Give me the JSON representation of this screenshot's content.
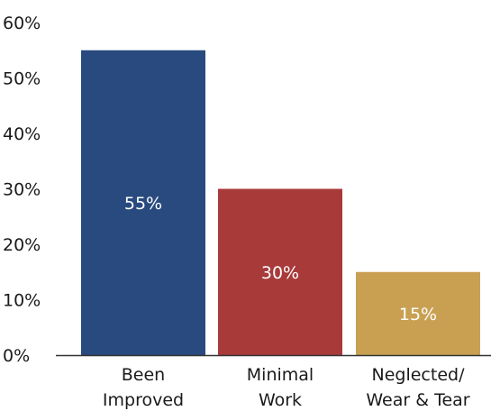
{
  "chart_data": {
    "type": "bar",
    "categories": [
      [
        "Been",
        "Improved"
      ],
      [
        "Minimal",
        "Work"
      ],
      [
        "Neglected/",
        "Wear & Tear"
      ]
    ],
    "values": [
      55,
      30,
      15
    ],
    "data_labels": [
      "55%",
      "30%",
      "15%"
    ],
    "colors": [
      "#284a7e",
      "#a83a3a",
      "#c9a052"
    ],
    "ylim": [
      0,
      60
    ],
    "yticks": [
      0,
      10,
      20,
      30,
      40,
      50,
      60
    ],
    "ytick_labels": [
      "0%",
      "10%",
      "20%",
      "30%",
      "40%",
      "50%",
      "60%"
    ],
    "grid": false,
    "title": "",
    "xlabel": "",
    "ylabel": ""
  }
}
